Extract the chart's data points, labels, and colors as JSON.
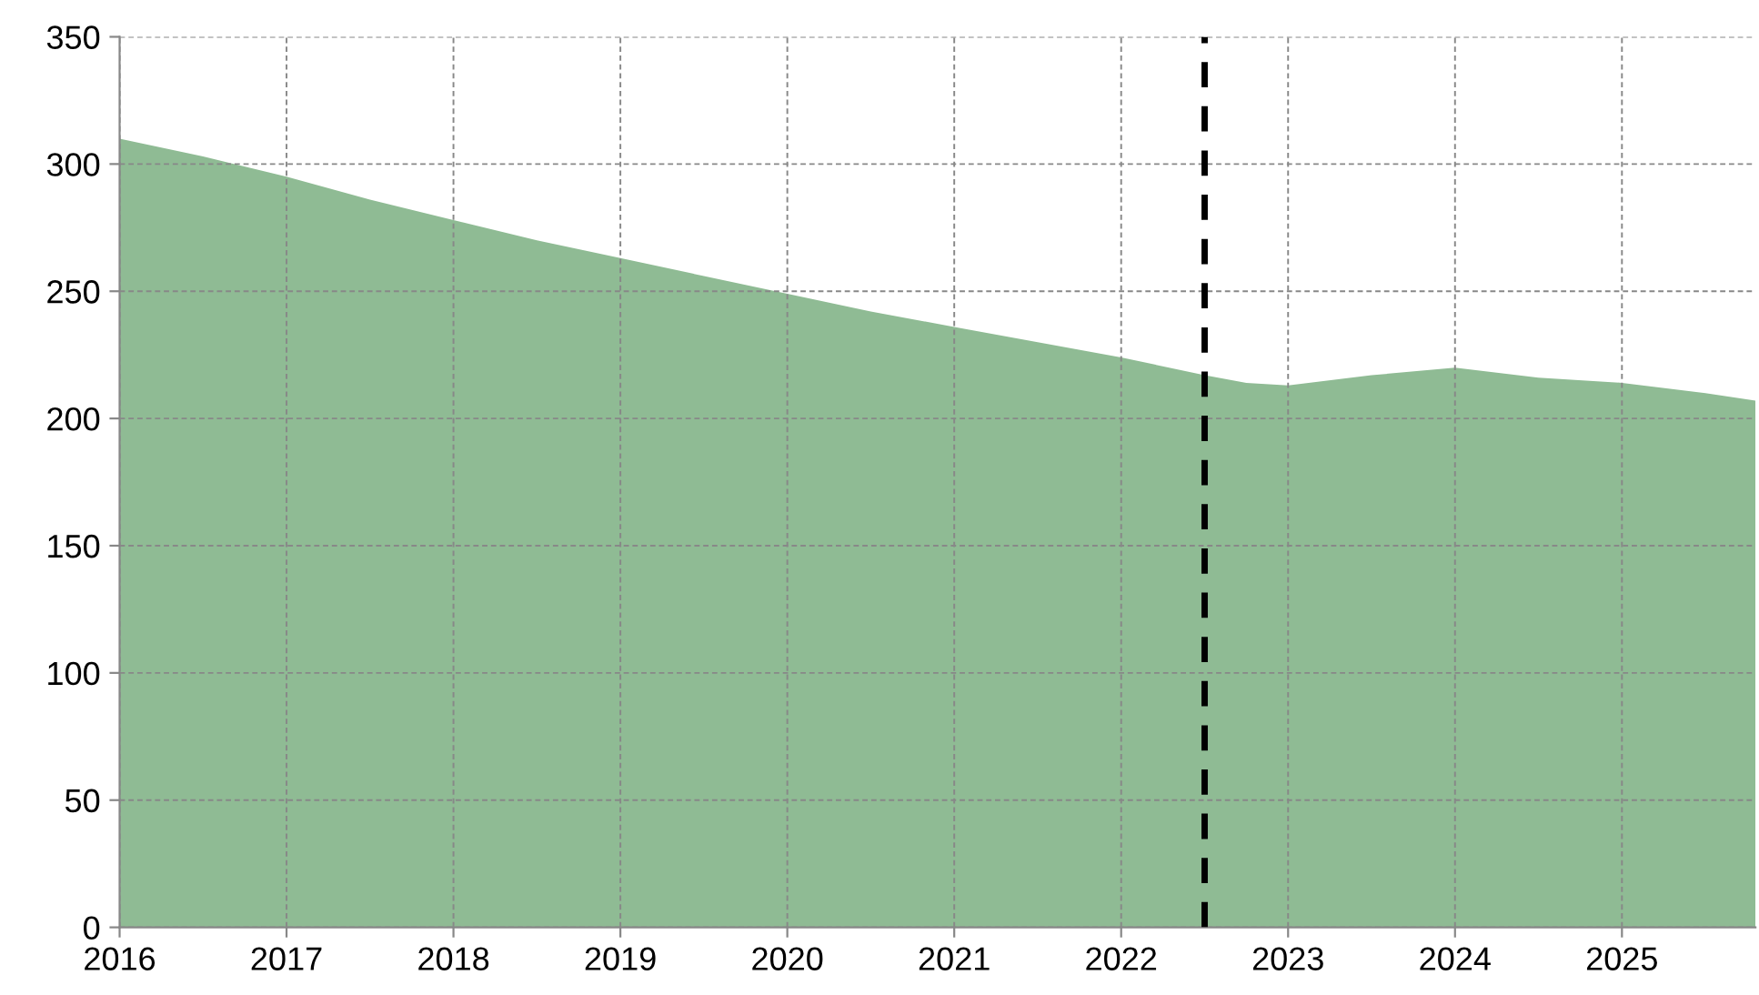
{
  "chart_data": {
    "type": "area",
    "x": [
      2016,
      2016.5,
      2017,
      2017.5,
      2018,
      2018.5,
      2019,
      2019.5,
      2020,
      2020.5,
      2021,
      2021.5,
      2022,
      2022.5,
      2022.75,
      2023,
      2023.5,
      2024,
      2024.5,
      2025,
      2025.5,
      2025.8
    ],
    "series": [
      {
        "color": "#8fbb94",
        "values": [
          310,
          303,
          295,
          286,
          278,
          270,
          263,
          256,
          249,
          242,
          236,
          230,
          224,
          217,
          214,
          213,
          217,
          220,
          216,
          214,
          210,
          207
        ]
      }
    ],
    "xlim": [
      2016,
      2025.8
    ],
    "ylim": [
      0,
      350
    ],
    "xticks": [
      2016,
      2017,
      2018,
      2019,
      2020,
      2021,
      2022,
      2023,
      2024,
      2025
    ],
    "yticks": [
      0,
      50,
      100,
      150,
      200,
      250,
      300,
      350
    ],
    "grid": true,
    "ref_lines": [
      {
        "axis": "x",
        "value": 2022.5,
        "color": "#000000",
        "line_style": "dashed"
      }
    ]
  }
}
